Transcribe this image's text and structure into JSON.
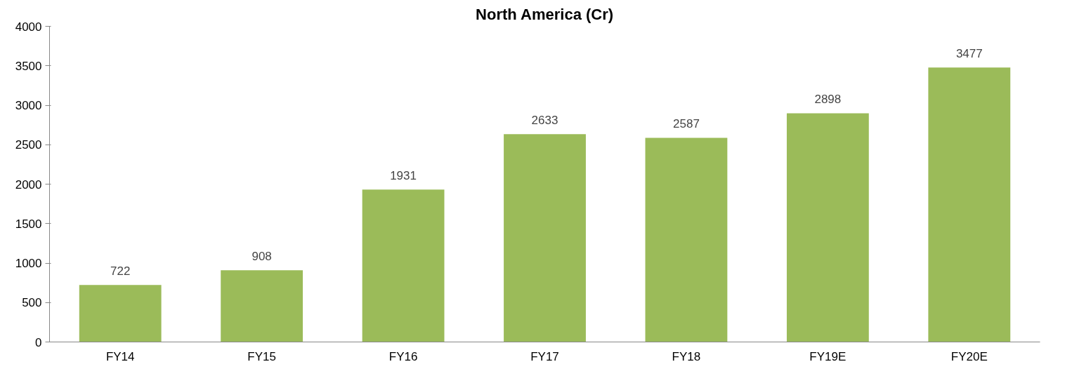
{
  "chart_data": {
    "type": "bar",
    "title": "North America (Cr)",
    "categories": [
      "FY14",
      "FY15",
      "FY16",
      "FY17",
      "FY18",
      "FY19E",
      "FY20E"
    ],
    "values": [
      722,
      908,
      1931,
      2633,
      2587,
      2898,
      3477
    ],
    "color": "#9bbb59",
    "ylim": [
      0,
      4000
    ],
    "yticks": [
      0,
      500,
      1000,
      1500,
      2000,
      2500,
      3000,
      3500,
      4000
    ],
    "data_labels": true,
    "grid": false
  }
}
